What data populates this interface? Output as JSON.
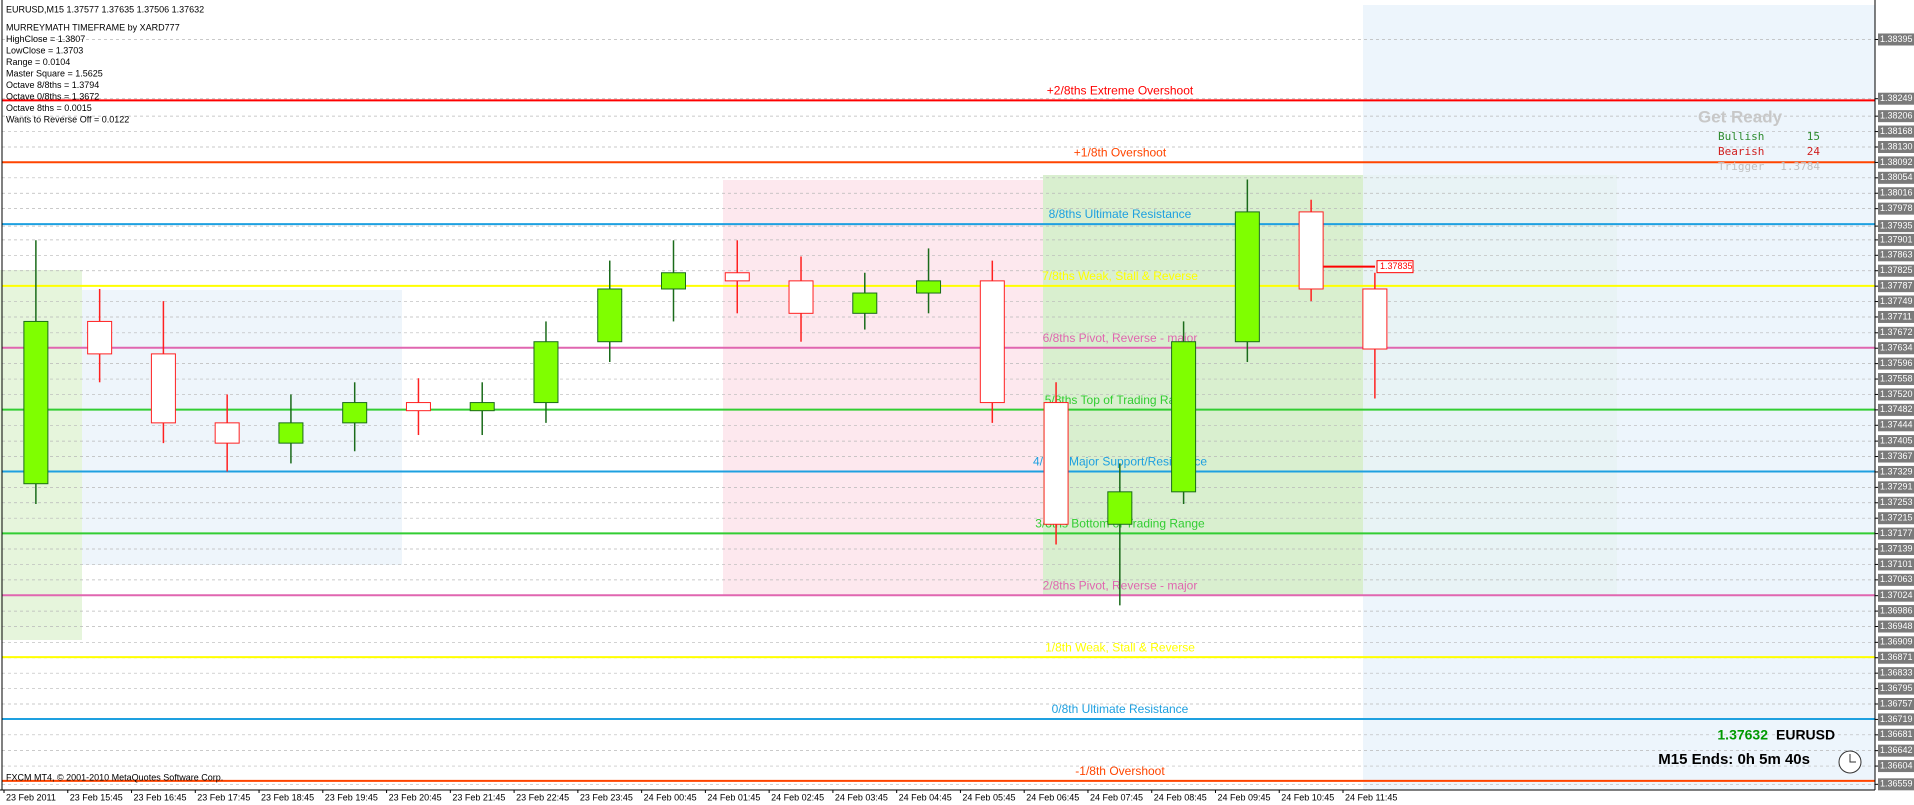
{
  "chart_data": {
    "type": "candlestick",
    "categories": [
      "23 Feb 2011",
      "23 Feb 15:45",
      "23 Feb 16:45",
      "23 Feb 17:45",
      "23 Feb 18:45",
      "23 Feb 19:45",
      "23 Feb 20:45",
      "23 Feb 21:45",
      "23 Feb 22:45",
      "23 Feb 23:45",
      "24 Feb 00:45",
      "24 Feb 01:45",
      "24 Feb 02:45",
      "24 Feb 03:45",
      "24 Feb 04:45",
      "24 Feb 05:45",
      "24 Feb 06:45",
      "24 Feb 07:45",
      "24 Feb 08:45",
      "24 Feb 09:45",
      "24 Feb 10:45",
      "24 Feb 11:45"
    ],
    "open": [
      1.373,
      1.377,
      1.3762,
      1.3745,
      1.374,
      1.3745,
      1.375,
      1.3748,
      1.375,
      1.3765,
      1.3778,
      1.3782,
      1.378,
      1.3772,
      1.3777,
      1.378,
      1.375,
      1.372,
      1.3728,
      1.3765,
      1.3797,
      1.3778
    ],
    "high": [
      1.379,
      1.3778,
      1.3775,
      1.3752,
      1.3752,
      1.3755,
      1.3756,
      1.3755,
      1.377,
      1.3785,
      1.379,
      1.379,
      1.3786,
      1.3782,
      1.3788,
      1.3785,
      1.3755,
      1.3735,
      1.377,
      1.3805,
      1.38,
      1.3782
    ],
    "low": [
      1.3725,
      1.3755,
      1.374,
      1.3733,
      1.3735,
      1.3738,
      1.3742,
      1.3742,
      1.3745,
      1.376,
      1.377,
      1.3772,
      1.3765,
      1.3768,
      1.3772,
      1.3745,
      1.3715,
      1.37,
      1.3725,
      1.376,
      1.3775,
      1.3751
    ],
    "close": [
      1.377,
      1.3762,
      1.3745,
      1.374,
      1.3745,
      1.375,
      1.3748,
      1.375,
      1.3765,
      1.3778,
      1.3782,
      1.378,
      1.3772,
      1.3777,
      1.378,
      1.375,
      1.372,
      1.3728,
      1.3765,
      1.3797,
      1.3778,
      1.37632
    ],
    "up_color": "#7fff00",
    "down_color": "#ff2020",
    "ylim": [
      1.36545,
      1.3848
    ],
    "yticks": [
      1.38395,
      1.38249,
      1.38206,
      1.38168,
      {
        "value": 1.3813,
        "label": "1.38130"
      },
      1.38092,
      1.38054,
      1.38016,
      1.37978,
      1.37935,
      1.37901,
      1.37863,
      1.37825,
      1.37787,
      1.37749,
      1.37711,
      1.37672,
      1.37634,
      1.37596,
      1.37558,
      {
        "value": 1.3752,
        "label": "1.37520"
      },
      1.37482,
      1.37444,
      1.37405,
      1.37367,
      1.37329,
      1.37291,
      1.37253,
      1.37215,
      1.37177,
      1.37139,
      1.37101,
      1.37063,
      1.37024,
      1.36986,
      1.36948,
      1.36909,
      1.36871,
      1.36833,
      1.36795,
      1.36757,
      1.36719,
      1.36681,
      1.36642,
      1.36604,
      1.36559
    ],
    "grid": true,
    "levels": [
      {
        "value": 1.38245,
        "label": "+2/8ths Extreme Overshoot",
        "color": "#ff0000"
      },
      {
        "value": 1.380925,
        "label": "+1/8th Overshoot",
        "color": "#ff4500"
      },
      {
        "value": 1.3794,
        "label": "8/8ths Ultimate Resistance",
        "color": "#1ea0e0"
      },
      {
        "value": 1.377875,
        "label": "7/8ths Weak, Stall & Reverse",
        "color": "#ffff00"
      },
      {
        "value": 1.37635,
        "label": "6/8ths Pivot, Reverse - major",
        "color": "#e066b0"
      },
      {
        "value": 1.374825,
        "label": "5/8ths Top of Trading Range",
        "color": "#32cd32"
      },
      {
        "value": 1.3733,
        "label": "4/8ths Major Support/Resistance",
        "color": "#1ea0e0"
      },
      {
        "value": 1.371775,
        "label": "3/8ths Bottom of Trading Range",
        "color": "#32cd32"
      },
      {
        "value": 1.37025,
        "label": "2/8ths Pivot, Reverse - major",
        "color": "#e066b0"
      },
      {
        "value": 1.368725,
        "label": "1/8th Weak, Stall & Reverse",
        "color": "#ffff00"
      },
      {
        "value": 1.3672,
        "label": "0/8th Ultimate Resistance",
        "color": "#1ea0e0"
      },
      {
        "value": 1.365675,
        "label": "-1/8th Overshoot",
        "color": "#ff4500"
      }
    ],
    "marker": {
      "value": 1.37835,
      "label": "1.37835"
    }
  },
  "info": {
    "symbol_line": "EURUSD,M15  1.37577 1.37635 1.37506 1.37632",
    "lines": [
      "MURREYMATH TIMEFRAME by XARD777",
      "HighClose = 1.3807",
      "LowClose = 1.3703",
      "Range = 0.0104",
      "Master Square = 1.5625",
      "Octave 8/8ths = 1.3794",
      "Octave 0/8ths = 1.3672",
      "Octave 8ths = 0.0015",
      "Wants to Reverse Off = 0.0122"
    ],
    "panel": {
      "title": "Get Ready",
      "bullish": "Bullish",
      "bullish_value": "15",
      "bearish": "Bearish",
      "bearish_value": "24",
      "trigger": "Trigger",
      "trigger_value": "1.3784"
    },
    "price": "1.37632",
    "symbol": "EURUSD",
    "timer": "M15 Ends: 0h 5m 40s",
    "copyright": "FXCM MT4, © 2001-2010 MetaQuotes Software Corp."
  }
}
